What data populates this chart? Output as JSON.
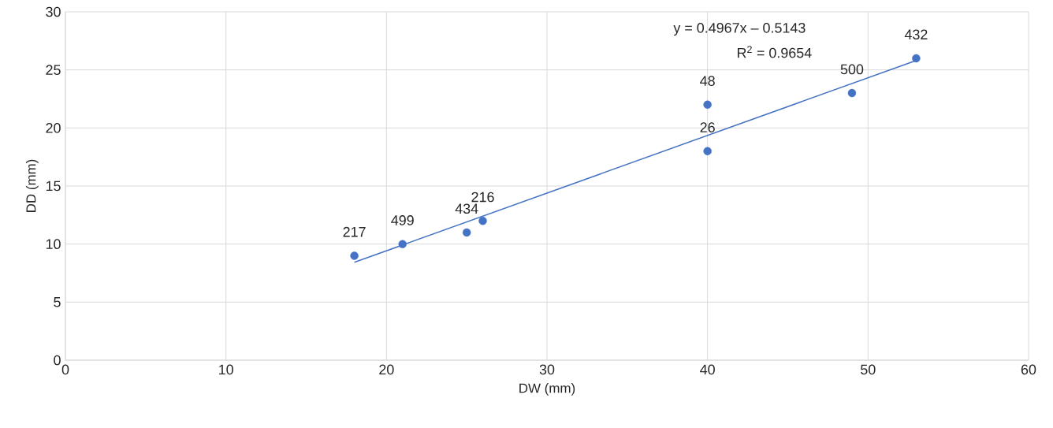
{
  "chart_data": {
    "type": "scatter",
    "xlabel": "DW (mm)",
    "ylabel": "DD (mm)",
    "series": [
      {
        "color": "#4472c4",
        "marker": "circle",
        "x": [
          18,
          21,
          25,
          26,
          40,
          40,
          49,
          53
        ],
        "values": [
          9,
          10,
          11,
          12,
          22,
          18,
          23,
          26
        ]
      },
      {
        "type": "line",
        "color": "#4472c4",
        "marker": "none",
        "line_style": "solid",
        "x": [
          18,
          53
        ],
        "values": [
          8.43,
          25.81
        ]
      }
    ],
    "annotations": [
      {
        "text": "217",
        "x": 18,
        "y": 9
      },
      {
        "text": "499",
        "x": 21,
        "y": 10
      },
      {
        "text": "434",
        "x": 25,
        "y": 11
      },
      {
        "text": "216",
        "x": 26,
        "y": 12
      },
      {
        "text": "48",
        "x": 40,
        "y": 22
      },
      {
        "text": "26",
        "x": 40,
        "y": 18
      },
      {
        "text": "500",
        "x": 49,
        "y": 23
      },
      {
        "text": "432",
        "x": 53,
        "y": 26
      },
      "y = 0.4967x – 0.5143",
      "R$^{2}$ = 0.9654"
    ],
    "xlim": [
      0,
      60
    ],
    "ylim": [
      0,
      30
    ],
    "xticks": [
      0,
      10,
      20,
      30,
      40,
      50,
      60
    ],
    "yticks": [
      0,
      5,
      10,
      15,
      20,
      25,
      30
    ],
    "grid": true
  }
}
